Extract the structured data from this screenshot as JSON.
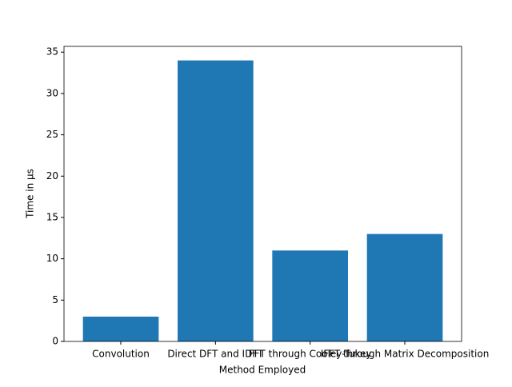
{
  "chart_data": {
    "type": "bar",
    "categories": [
      "Convolution",
      "Direct DFT and IDFT",
      "FFT through Cooley-Tukey",
      "IFFT through Matrix Decomposition"
    ],
    "values": [
      3,
      34,
      11,
      13
    ],
    "color": "#1f77b4",
    "xlabel": "Method Employed",
    "ylabel": "Time in μs",
    "ylim": [
      0,
      35.7
    ],
    "yticks": [
      0,
      5,
      10,
      15,
      20,
      25,
      30,
      35
    ],
    "grid": false
  }
}
